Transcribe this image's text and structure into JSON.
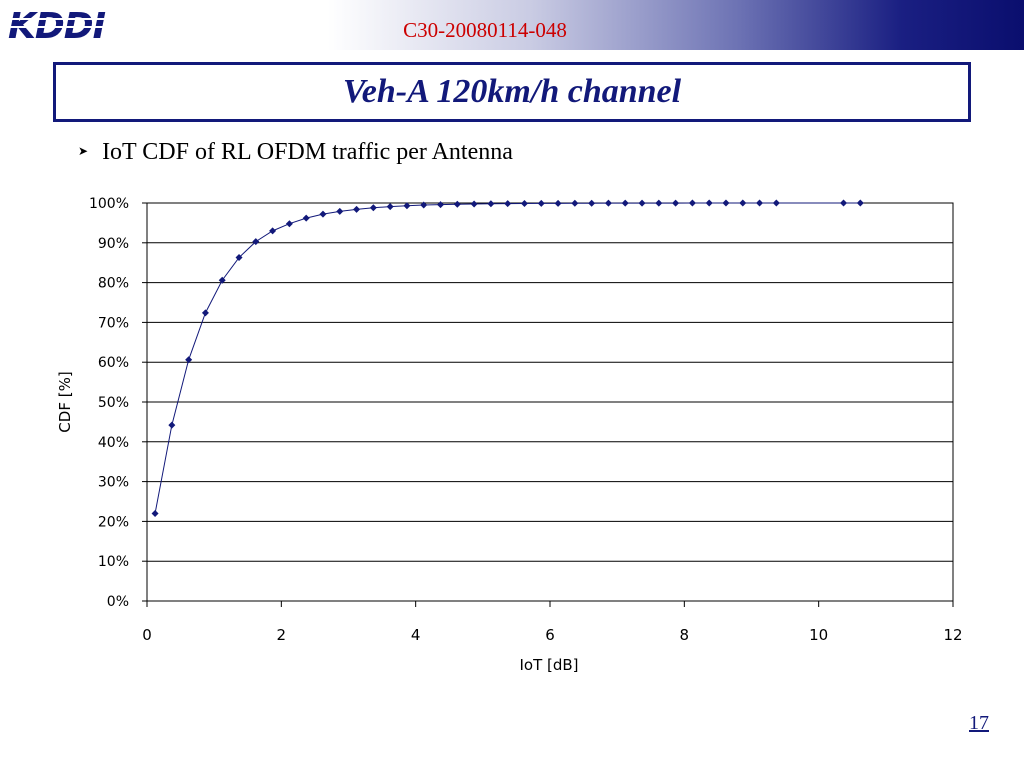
{
  "header": {
    "logo_text": "KDDI",
    "doc_id": "C30-20080114-048",
    "brand_color": "#12197a",
    "doc_id_color": "#cc0000"
  },
  "slide": {
    "title": "Veh-A 120km/h channel",
    "bullet": "IoT CDF of RL OFDM traffic per Antenna",
    "page_number": "17"
  },
  "chart_data": {
    "type": "line",
    "title": "",
    "xlabel": "IoT [dB]",
    "ylabel": "CDF [%]",
    "xlim": [
      0,
      12
    ],
    "ylim": [
      0,
      100
    ],
    "x_ticks": [
      0,
      2,
      4,
      6,
      8,
      10,
      12
    ],
    "y_ticks": [
      0,
      10,
      20,
      30,
      40,
      50,
      60,
      70,
      80,
      90,
      100
    ],
    "x_tick_labels": [
      "0",
      "2",
      "4",
      "6",
      "8",
      "10",
      "12"
    ],
    "y_tick_labels": [
      "0%",
      "10%",
      "20%",
      "30%",
      "40%",
      "50%",
      "60%",
      "70%",
      "80%",
      "90%",
      "100%"
    ],
    "grid": "horizontal",
    "series_color": "#12197a",
    "series": [
      {
        "x": [
          0.12,
          0.37,
          0.62,
          0.87,
          1.12,
          1.37,
          1.62,
          1.87,
          2.12,
          2.37,
          2.62,
          2.87,
          3.12,
          3.37,
          3.62,
          3.87,
          4.12,
          4.37,
          4.62,
          4.87,
          5.12,
          5.37,
          5.62,
          5.87,
          6.12,
          6.37,
          6.62,
          6.87,
          7.12,
          7.37,
          7.62,
          7.87,
          8.12,
          8.37,
          8.62,
          8.87,
          9.12,
          9.37,
          10.37,
          10.62
        ],
        "y": [
          22.0,
          44.2,
          60.6,
          72.4,
          80.6,
          86.3,
          90.3,
          93.0,
          94.8,
          96.2,
          97.2,
          97.9,
          98.4,
          98.8,
          99.1,
          99.3,
          99.5,
          99.6,
          99.7,
          99.75,
          99.8,
          99.85,
          99.88,
          99.9,
          99.92,
          99.94,
          99.95,
          99.96,
          99.97,
          99.97,
          99.98,
          99.98,
          99.99,
          99.99,
          99.99,
          99.99,
          100.0,
          100.0,
          100.0,
          100.0
        ]
      }
    ]
  }
}
